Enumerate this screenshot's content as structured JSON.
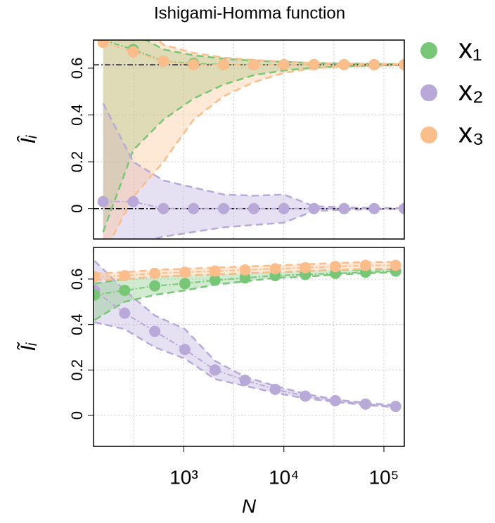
{
  "chart_data": [
    {
      "type": "scatter",
      "title": "Ishigami-Homma function",
      "ylabel": "Îᵢ",
      "log_x": true,
      "grid": true,
      "x": [
        156,
        312,
        625,
        1250,
        2500,
        5000,
        10000,
        20000,
        40000,
        80000,
        160000
      ],
      "xlim": [
        125,
        160000
      ],
      "xgrid": [
        316,
        1000,
        3162,
        10000,
        31623,
        100000
      ],
      "ylim": [
        -0.13,
        0.72
      ],
      "yticks": [
        0,
        0.2,
        0.4,
        0.6
      ],
      "reference_lines": [
        0.614,
        0
      ],
      "series": [
        {
          "name": "x₁",
          "color": "#77c776",
          "values": [
            0.72,
            0.68,
            0.63,
            0.62,
            0.615,
            0.615,
            0.615,
            0.615,
            0.615,
            0.615,
            0.615
          ],
          "upper": [
            0.95,
            0.75,
            0.68,
            0.655,
            0.64,
            0.632,
            0.627,
            0.622,
            0.62,
            0.618,
            0.617
          ],
          "lower": [
            -0.1,
            0.25,
            0.38,
            0.47,
            0.53,
            0.57,
            0.59,
            0.602,
            0.608,
            0.611,
            0.613
          ]
        },
        {
          "name": "x₂",
          "color": "#b8a9d9",
          "values": [
            0.03,
            0.03,
            0,
            0,
            0,
            0,
            0,
            0,
            0,
            0,
            0
          ],
          "upper": [
            0.45,
            0.2,
            0.12,
            0.09,
            0.06,
            0.055,
            0.06,
            0.01,
            0.005,
            0.003,
            0.002
          ],
          "lower": [
            -0.35,
            -0.15,
            -0.12,
            -0.1,
            -0.08,
            -0.07,
            -0.06,
            -0.01,
            -0.005,
            -0.003,
            -0.002
          ]
        },
        {
          "name": "x₃",
          "color": "#fbbd89",
          "values": [
            0.71,
            0.67,
            0.63,
            0.615,
            0.615,
            0.615,
            0.615,
            0.615,
            0.615,
            0.615,
            0.615
          ],
          "upper": [
            0.95,
            0.82,
            0.7,
            0.665,
            0.645,
            0.635,
            0.628,
            0.622,
            0.62,
            0.618,
            0.617
          ],
          "lower": [
            -0.2,
            0.05,
            0.2,
            0.38,
            0.48,
            0.54,
            0.58,
            0.6,
            0.607,
            0.61,
            0.612
          ]
        }
      ]
    },
    {
      "type": "scatter",
      "ylabel": "Ĩᵢ",
      "xlabel": "N",
      "log_x": true,
      "grid": true,
      "x": [
        128,
        256,
        512,
        1024,
        2048,
        4096,
        8192,
        16384,
        32768,
        65536,
        131072
      ],
      "xlim": [
        125,
        160000
      ],
      "xgrid": [
        316,
        1000,
        3162,
        10000,
        31623,
        100000
      ],
      "xticks": [
        {
          "value": 1000,
          "label": "10³"
        },
        {
          "value": 10000,
          "label": "10⁴"
        },
        {
          "value": 100000,
          "label": "10⁵"
        }
      ],
      "ylim": [
        -0.136,
        0.739
      ],
      "yticks": [
        0,
        0.2,
        0.4,
        0.6
      ],
      "series": [
        {
          "color": "#b8a9d9",
          "values": [
            0.55,
            0.45,
            0.37,
            0.29,
            0.2,
            0.155,
            0.115,
            0.085,
            0.065,
            0.05,
            0.04
          ],
          "upper": [
            0.68,
            0.55,
            0.44,
            0.38,
            0.24,
            0.17,
            0.13,
            0.095,
            0.07,
            0.055,
            0.045
          ],
          "lower": [
            0.41,
            0.38,
            0.3,
            0.25,
            0.16,
            0.13,
            0.1,
            0.075,
            0.06,
            0.045,
            0.037
          ]
        },
        {
          "color": "#77c776",
          "values": [
            0.53,
            0.55,
            0.57,
            0.58,
            0.595,
            0.605,
            0.615,
            0.62,
            0.625,
            0.63,
            0.635
          ],
          "upper": [
            0.58,
            0.6,
            0.61,
            0.615,
            0.62,
            0.625,
            0.63,
            0.635,
            0.64,
            0.64,
            0.645
          ],
          "lower": [
            0.42,
            0.5,
            0.53,
            0.55,
            0.575,
            0.59,
            0.605,
            0.61,
            0.62,
            0.625,
            0.63
          ]
        },
        {
          "color": "#fbbd89",
          "values": [
            0.61,
            0.615,
            0.625,
            0.63,
            0.635,
            0.64,
            0.645,
            0.65,
            0.655,
            0.66,
            0.66
          ],
          "upper": [
            0.625,
            0.63,
            0.64,
            0.645,
            0.65,
            0.655,
            0.66,
            0.665,
            0.67,
            0.675,
            0.675
          ],
          "lower": [
            0.595,
            0.6,
            0.61,
            0.615,
            0.62,
            0.625,
            0.63,
            0.635,
            0.64,
            0.645,
            0.645
          ]
        }
      ]
    }
  ]
}
